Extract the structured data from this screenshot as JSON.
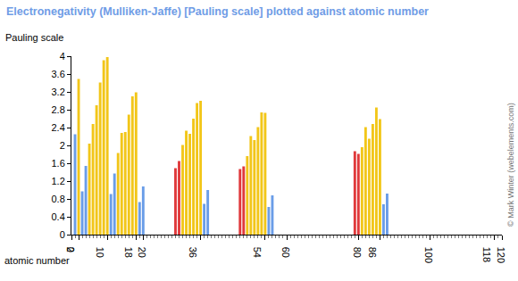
{
  "chart_data": {
    "type": "bar",
    "title": "Electronegativity (Mulliken-Jaffe) [Pauling scale] plotted against atomic number",
    "xlabel": "atomic number",
    "ylabel": "Pauling scale",
    "x": [
      1,
      2,
      3,
      4,
      5,
      6,
      7,
      8,
      9,
      10,
      11,
      12,
      13,
      14,
      15,
      16,
      17,
      18,
      19,
      20,
      29,
      30,
      31,
      32,
      33,
      34,
      35,
      36,
      37,
      38,
      47,
      48,
      49,
      50,
      51,
      52,
      53,
      54,
      55,
      56,
      79,
      80,
      81,
      82,
      83,
      84,
      85,
      86,
      87,
      88
    ],
    "values": [
      2.25,
      3.49,
      0.97,
      1.54,
      2.04,
      2.48,
      2.9,
      3.41,
      3.91,
      3.98,
      0.91,
      1.37,
      1.83,
      2.28,
      2.3,
      2.69,
      3.1,
      3.19,
      0.73,
      1.08,
      1.49,
      1.65,
      2.01,
      2.33,
      2.26,
      2.6,
      2.95,
      3.0,
      0.69,
      1.0,
      1.47,
      1.53,
      1.76,
      2.21,
      2.12,
      2.41,
      2.74,
      2.73,
      0.62,
      0.88,
      1.87,
      1.81,
      1.96,
      2.41,
      2.15,
      2.48,
      2.85,
      2.59,
      0.68,
      0.92
    ],
    "colors": [
      "#6a9de8",
      "#f2c619",
      "#6a9de8",
      "#6a9de8",
      "#f2c619",
      "#f2c619",
      "#f2c619",
      "#f2c619",
      "#f2c619",
      "#f2c619",
      "#6a9de8",
      "#6a9de8",
      "#f2c619",
      "#f2c619",
      "#f2c619",
      "#f2c619",
      "#f2c619",
      "#f2c619",
      "#6a9de8",
      "#6a9de8",
      "#e0393b",
      "#e0393b",
      "#f2c619",
      "#f2c619",
      "#f2c619",
      "#f2c619",
      "#f2c619",
      "#f2c619",
      "#6a9de8",
      "#6a9de8",
      "#e0393b",
      "#e0393b",
      "#f2c619",
      "#f2c619",
      "#f2c619",
      "#f2c619",
      "#f2c619",
      "#f2c619",
      "#6a9de8",
      "#6a9de8",
      "#e0393b",
      "#e0393b",
      "#f2c619",
      "#f2c619",
      "#f2c619",
      "#f2c619",
      "#f2c619",
      "#f2c619",
      "#6a9de8",
      "#6a9de8"
    ],
    "xlim": [
      0,
      120
    ],
    "xticks": [
      0,
      2,
      10,
      18,
      20,
      36,
      54,
      60,
      80,
      86,
      100,
      118,
      120
    ],
    "ylim": [
      0,
      4
    ],
    "yticks": [
      0,
      0.4,
      0.8,
      1.2,
      1.6,
      2,
      2.4,
      2.8,
      3.2,
      3.6,
      4
    ],
    "annotations": [
      {
        "text": "© Mark Winter (webelements.com)"
      }
    ]
  }
}
